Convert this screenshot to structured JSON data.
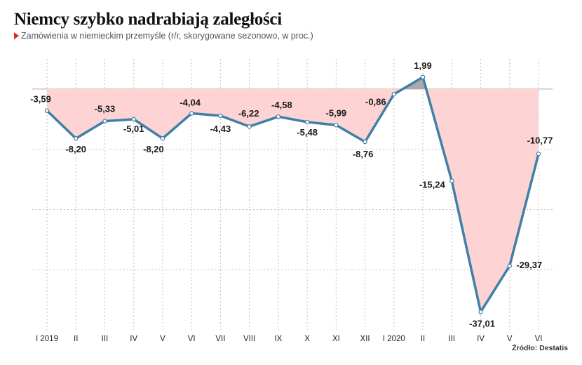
{
  "title": "Niemcy szybko nadrabiają zaległości",
  "subtitle": "Zamówienia w niemieckim przemyśle (r/r, skorygowane sezonowo, w proc.)",
  "source": "Źródło: Destatis",
  "colors": {
    "line": "#3f7fa8",
    "negative_fill": "#fdd3d3",
    "positive_fill": "#aaaaaa",
    "grid": "#c9bfb0",
    "marker_accent": "#e5261f"
  },
  "chart_data": {
    "type": "line",
    "categories": [
      "I 2019",
      "II",
      "III",
      "IV",
      "V",
      "VI",
      "VII",
      "VIII",
      "IX",
      "X",
      "XI",
      "XII",
      "I 2020",
      "II",
      "III",
      "IV",
      "V",
      "VI"
    ],
    "values": [
      -3.59,
      -8.2,
      -5.33,
      -5.01,
      -8.2,
      -4.04,
      -4.43,
      -6.22,
      -4.58,
      -5.48,
      -5.99,
      -8.76,
      -0.86,
      1.99,
      -15.24,
      -37.01,
      -29.37,
      -10.77
    ],
    "labels": [
      "-3,59",
      "-8,20",
      "-5,33",
      "-5,01",
      "-8,20",
      "-4,04",
      "-4,43",
      "-6,22",
      "-4,58",
      "-5,48",
      "-5,99",
      "-8,76",
      "-0,86",
      "1,99",
      "-15,24",
      "-37,01",
      "-29,37",
      "-10,77"
    ],
    "ylim": [
      -40,
      5
    ],
    "grid": true,
    "fill_to_zero": true,
    "xlabel": "",
    "ylabel": ""
  }
}
